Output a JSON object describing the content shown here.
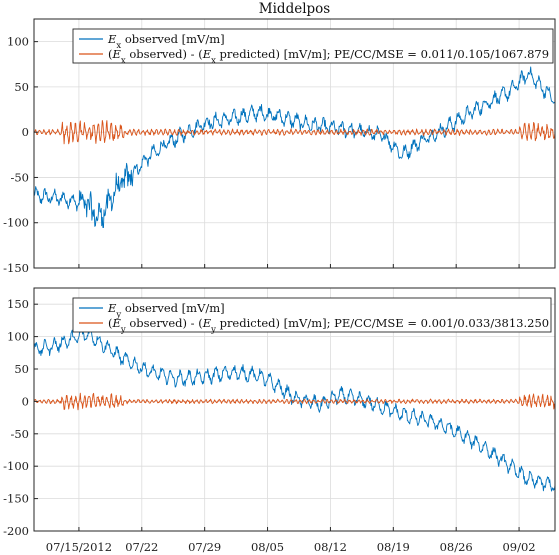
{
  "chart_data": [
    {
      "type": "line",
      "title": "Middelpos",
      "xlabel": "",
      "ylabel": "",
      "ylim": [
        -150,
        125
      ],
      "yticks": [
        -150,
        -100,
        -50,
        0,
        50,
        100
      ],
      "xlim": [
        "2012-07-10",
        "2012-09-06"
      ],
      "xticks": [
        "2012-07-15",
        "2012-07-22",
        "2012-07-29",
        "2012-08-05",
        "2012-08-12",
        "2012-08-19",
        "2012-08-26",
        "2012-09-02"
      ],
      "grid": true,
      "legend_position": "top",
      "series": [
        {
          "name_parts": {
            "base": "E",
            "sub": "x",
            "rest": " observed [mV/m]"
          },
          "color": "#0072BD",
          "points": [
            [
              "2012-07-10",
              -70
            ],
            [
              "2012-07-12",
              -72
            ],
            [
              "2012-07-14",
              -75
            ],
            [
              "2012-07-16",
              -80
            ],
            [
              "2012-07-17",
              -95
            ],
            [
              "2012-07-18",
              -85
            ],
            [
              "2012-07-19",
              -65
            ],
            [
              "2012-07-21",
              -45
            ],
            [
              "2012-07-23",
              -25
            ],
            [
              "2012-07-25",
              -12
            ],
            [
              "2012-07-27",
              0
            ],
            [
              "2012-07-29",
              10
            ],
            [
              "2012-08-01",
              15
            ],
            [
              "2012-08-04",
              22
            ],
            [
              "2012-08-06",
              18
            ],
            [
              "2012-08-09",
              10
            ],
            [
              "2012-08-12",
              5
            ],
            [
              "2012-08-16",
              0
            ],
            [
              "2012-08-18",
              -5
            ],
            [
              "2012-08-20",
              -25
            ],
            [
              "2012-08-22",
              -10
            ],
            [
              "2012-08-24",
              0
            ],
            [
              "2012-08-26",
              12
            ],
            [
              "2012-08-29",
              30
            ],
            [
              "2012-09-01",
              45
            ],
            [
              "2012-09-03",
              65
            ],
            [
              "2012-09-05",
              45
            ],
            [
              "2012-09-06",
              35
            ]
          ]
        },
        {
          "name_parts": {
            "pre": "(",
            "base": "E",
            "sub": "x",
            "mid": " observed) - (",
            "base2": "E",
            "sub2": "x",
            "rest": " predicted) [mV/m]; PE/CC/MSE = 0.011/0.105/1067.879"
          },
          "color": "#D95319",
          "points": [
            [
              "2012-07-10",
              0
            ],
            [
              "2012-09-06",
              0
            ]
          ]
        }
      ]
    },
    {
      "type": "line",
      "title": "",
      "xlabel": "",
      "ylabel": "",
      "ylim": [
        -200,
        175
      ],
      "yticks": [
        -200,
        -150,
        -100,
        -50,
        0,
        50,
        100,
        150
      ],
      "xlim": [
        "2012-07-10",
        "2012-09-06"
      ],
      "xticks": [
        "2012-07-15",
        "2012-07-22",
        "2012-07-29",
        "2012-08-05",
        "2012-08-12",
        "2012-08-19",
        "2012-08-26",
        "2012-09-02"
      ],
      "xticklabels": [
        "07/15/2012",
        "07/22",
        "07/29",
        "08/05",
        "08/12",
        "08/19",
        "08/26",
        "09/02"
      ],
      "grid": true,
      "legend_position": "top",
      "series": [
        {
          "name_parts": {
            "base": "E",
            "sub": "y",
            "rest": " observed [mV/m]"
          },
          "color": "#0072BD",
          "points": [
            [
              "2012-07-10",
              80
            ],
            [
              "2012-07-12",
              85
            ],
            [
              "2012-07-14",
              95
            ],
            [
              "2012-07-16",
              105
            ],
            [
              "2012-07-18",
              85
            ],
            [
              "2012-07-20",
              65
            ],
            [
              "2012-07-23",
              45
            ],
            [
              "2012-07-26",
              35
            ],
            [
              "2012-07-29",
              38
            ],
            [
              "2012-08-01",
              45
            ],
            [
              "2012-08-04",
              40
            ],
            [
              "2012-08-06",
              25
            ],
            [
              "2012-08-08",
              5
            ],
            [
              "2012-08-11",
              -5
            ],
            [
              "2012-08-13",
              10
            ],
            [
              "2012-08-16",
              0
            ],
            [
              "2012-08-18",
              -10
            ],
            [
              "2012-08-20",
              -20
            ],
            [
              "2012-08-23",
              -30
            ],
            [
              "2012-08-25",
              -40
            ],
            [
              "2012-08-27",
              -55
            ],
            [
              "2012-08-29",
              -70
            ],
            [
              "2012-09-01",
              -100
            ],
            [
              "2012-09-03",
              -120
            ],
            [
              "2012-09-06",
              -130
            ]
          ]
        },
        {
          "name_parts": {
            "pre": "(",
            "base": "E",
            "sub": "y",
            "mid": " observed) - (",
            "base2": "E",
            "sub2": "y",
            "rest": " predicted) [mV/m]; PE/CC/MSE = 0.001/0.033/3813.250"
          },
          "color": "#D95319",
          "points": [
            [
              "2012-07-10",
              0
            ],
            [
              "2012-09-06",
              0
            ]
          ]
        }
      ]
    }
  ]
}
